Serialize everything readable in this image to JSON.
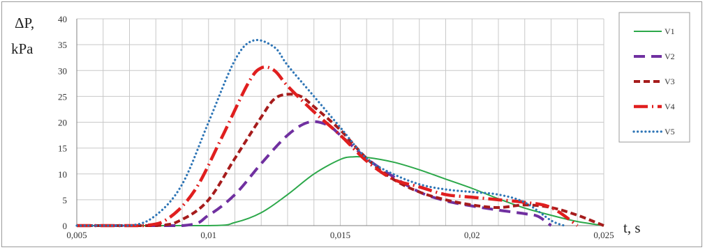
{
  "chart_data": {
    "type": "line",
    "xlabel": "t, s",
    "ylabel_line1": "ΔP,",
    "ylabel_line2": "kPa",
    "xlim": [
      0.005,
      0.025
    ],
    "ylim": [
      0,
      40
    ],
    "x_ticks": [
      "0,005",
      "0,01",
      "0,015",
      "0,02",
      "0,025"
    ],
    "y_ticks": [
      "0",
      "5",
      "10",
      "15",
      "20",
      "25",
      "30",
      "35",
      "40"
    ],
    "grid": true,
    "legend_position": "right",
    "series": [
      {
        "name": "V1",
        "color": "#2ca84a",
        "style": "solid",
        "points": [
          [
            0.005,
            0
          ],
          [
            0.01,
            0
          ],
          [
            0.011,
            0.6
          ],
          [
            0.012,
            2.5
          ],
          [
            0.013,
            6
          ],
          [
            0.014,
            10
          ],
          [
            0.015,
            12.8
          ],
          [
            0.0155,
            13.3
          ],
          [
            0.016,
            13.2
          ],
          [
            0.017,
            12.3
          ],
          [
            0.018,
            10.8
          ],
          [
            0.019,
            9
          ],
          [
            0.02,
            7.2
          ],
          [
            0.021,
            5.2
          ],
          [
            0.022,
            3.4
          ],
          [
            0.023,
            2
          ],
          [
            0.024,
            0.8
          ],
          [
            0.025,
            0
          ]
        ]
      },
      {
        "name": "V2",
        "color": "#7030a0",
        "style": "long-dash",
        "points": [
          [
            0.005,
            0
          ],
          [
            0.009,
            0
          ],
          [
            0.01,
            2
          ],
          [
            0.011,
            6
          ],
          [
            0.012,
            12
          ],
          [
            0.013,
            17.5
          ],
          [
            0.0138,
            20
          ],
          [
            0.0145,
            19.5
          ],
          [
            0.015,
            17.5
          ],
          [
            0.016,
            13
          ],
          [
            0.017,
            9.5
          ],
          [
            0.018,
            6.5
          ],
          [
            0.019,
            4.8
          ],
          [
            0.02,
            3.8
          ],
          [
            0.021,
            3
          ],
          [
            0.022,
            2.3
          ],
          [
            0.0225,
            1.8
          ],
          [
            0.023,
            0
          ]
        ]
      },
      {
        "name": "V3",
        "color": "#a61c1c",
        "style": "dash",
        "points": [
          [
            0.005,
            0
          ],
          [
            0.008,
            0
          ],
          [
            0.009,
            1.2
          ],
          [
            0.01,
            5
          ],
          [
            0.011,
            13
          ],
          [
            0.012,
            21
          ],
          [
            0.0125,
            24.5
          ],
          [
            0.013,
            25.4
          ],
          [
            0.0135,
            25
          ],
          [
            0.014,
            23
          ],
          [
            0.015,
            18.5
          ],
          [
            0.016,
            13
          ],
          [
            0.017,
            9
          ],
          [
            0.018,
            6.5
          ],
          [
            0.019,
            5
          ],
          [
            0.02,
            4
          ],
          [
            0.021,
            3.5
          ],
          [
            0.022,
            4
          ],
          [
            0.023,
            3.5
          ],
          [
            0.024,
            2
          ],
          [
            0.025,
            0
          ]
        ]
      },
      {
        "name": "V4",
        "color": "#e01f1f",
        "style": "dash-dot",
        "points": [
          [
            0.005,
            0
          ],
          [
            0.0075,
            0
          ],
          [
            0.0085,
            1.5
          ],
          [
            0.0095,
            7
          ],
          [
            0.0105,
            17
          ],
          [
            0.0115,
            27.5
          ],
          [
            0.012,
            30.5
          ],
          [
            0.0125,
            30
          ],
          [
            0.013,
            27
          ],
          [
            0.014,
            22
          ],
          [
            0.015,
            17.5
          ],
          [
            0.016,
            12.5
          ],
          [
            0.017,
            9
          ],
          [
            0.018,
            7.5
          ],
          [
            0.019,
            6
          ],
          [
            0.02,
            5.5
          ],
          [
            0.021,
            5
          ],
          [
            0.022,
            4.5
          ],
          [
            0.023,
            3.5
          ],
          [
            0.024,
            0
          ]
        ]
      },
      {
        "name": "V5",
        "color": "#2e75b6",
        "style": "dot",
        "points": [
          [
            0.005,
            0
          ],
          [
            0.007,
            0
          ],
          [
            0.008,
            2
          ],
          [
            0.009,
            8
          ],
          [
            0.01,
            20
          ],
          [
            0.011,
            32
          ],
          [
            0.0117,
            35.8
          ],
          [
            0.0125,
            34.5
          ],
          [
            0.013,
            31
          ],
          [
            0.014,
            25
          ],
          [
            0.015,
            19
          ],
          [
            0.016,
            13
          ],
          [
            0.017,
            10
          ],
          [
            0.018,
            8
          ],
          [
            0.019,
            7
          ],
          [
            0.02,
            6.5
          ],
          [
            0.021,
            6
          ],
          [
            0.022,
            4.5
          ],
          [
            0.023,
            1
          ],
          [
            0.0235,
            0
          ]
        ]
      }
    ]
  }
}
